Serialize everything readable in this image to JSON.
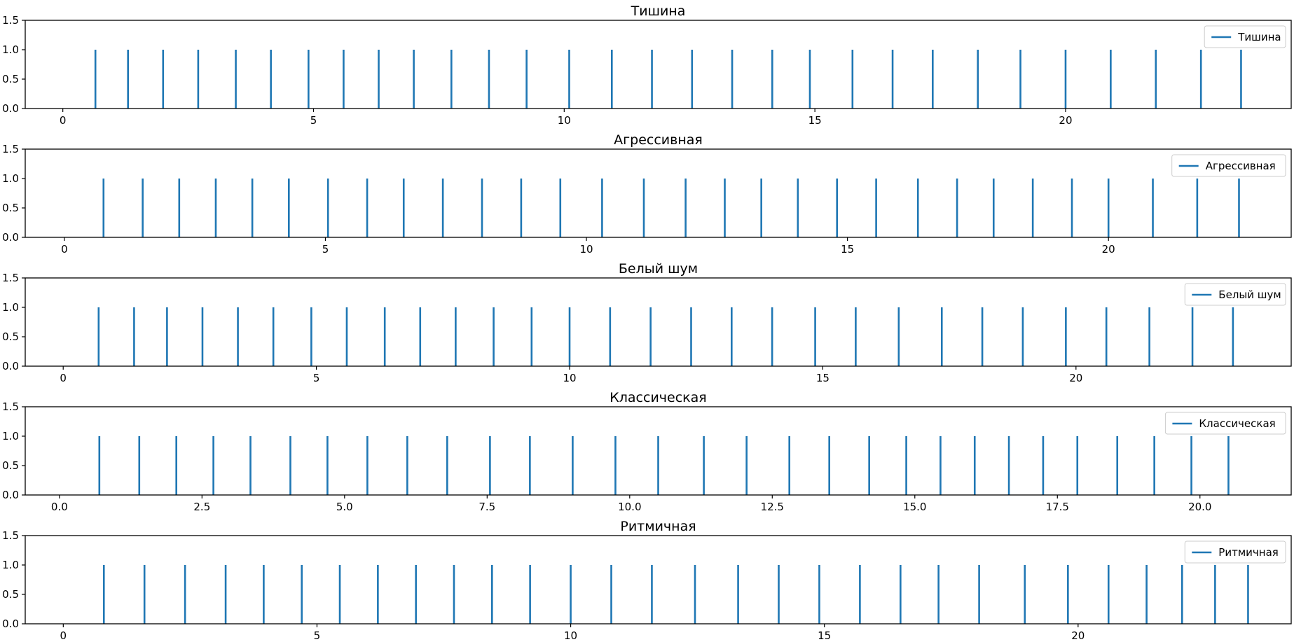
{
  "chart_data": [
    {
      "type": "bar",
      "title": "Тишина",
      "xlabel": "",
      "ylabel": "",
      "xlim": [
        -0.75,
        24.5
      ],
      "ylim": [
        0,
        1.5
      ],
      "xticks": [
        "0",
        "5",
        "10",
        "15",
        "20"
      ],
      "yticks": [
        "0.0",
        "0.5",
        "1.0",
        "1.5"
      ],
      "legend": "Тишина",
      "legend_position": "top-right",
      "series": [
        {
          "name": "Тишина",
          "value": 1,
          "x": [
            0.65,
            1.3,
            2.0,
            2.7,
            3.45,
            4.15,
            4.9,
            5.6,
            6.3,
            7.0,
            7.75,
            8.5,
            9.25,
            10.1,
            10.95,
            11.75,
            12.55,
            13.35,
            14.15,
            14.9,
            15.75,
            16.55,
            17.35,
            18.25,
            19.1,
            20.0,
            20.9,
            21.8,
            22.7,
            23.5
          ]
        }
      ]
    },
    {
      "type": "bar",
      "title": "Агрессивная",
      "xlabel": "",
      "ylabel": "",
      "xlim": [
        -0.75,
        23.5
      ],
      "ylim": [
        0,
        1.5
      ],
      "xticks": [
        "0",
        "5",
        "10",
        "15",
        "20"
      ],
      "yticks": [
        "0.0",
        "0.5",
        "1.0",
        "1.5"
      ],
      "legend": "Агрессивная",
      "legend_position": "top-right",
      "series": [
        {
          "name": "Агрессивная",
          "value": 1,
          "x": [
            0.75,
            1.5,
            2.2,
            2.9,
            3.6,
            4.3,
            5.05,
            5.8,
            6.5,
            7.25,
            8.0,
            8.75,
            9.5,
            10.3,
            11.1,
            11.9,
            12.65,
            13.35,
            14.05,
            14.8,
            15.55,
            16.35,
            17.1,
            17.8,
            18.55,
            19.3,
            20.0,
            20.85,
            21.7,
            22.5
          ]
        }
      ]
    },
    {
      "type": "bar",
      "title": "Белый шум",
      "xlabel": "",
      "ylabel": "",
      "xlim": [
        -0.75,
        24.25
      ],
      "ylim": [
        0,
        1.5
      ],
      "xticks": [
        "0",
        "5",
        "10",
        "15",
        "20"
      ],
      "yticks": [
        "0.0",
        "0.5",
        "1.0",
        "1.5"
      ],
      "legend": "Белый шум",
      "legend_position": "top-right",
      "series": [
        {
          "name": "Белый шум",
          "value": 1,
          "x": [
            0.7,
            1.4,
            2.05,
            2.75,
            3.45,
            4.15,
            4.9,
            5.6,
            6.35,
            7.05,
            7.75,
            8.5,
            9.25,
            10.0,
            10.8,
            11.6,
            12.4,
            13.2,
            14.0,
            14.85,
            15.65,
            16.5,
            17.35,
            18.15,
            18.95,
            19.8,
            20.6,
            21.45,
            22.3,
            23.1
          ]
        }
      ]
    },
    {
      "type": "bar",
      "title": "Классическая",
      "xlabel": "",
      "ylabel": "",
      "xlim": [
        -0.6,
        21.6
      ],
      "ylim": [
        0,
        1.5
      ],
      "xticks": [
        "0.0",
        "2.5",
        "5.0",
        "7.5",
        "10.0",
        "12.5",
        "15.0",
        "17.5",
        "20.0"
      ],
      "yticks": [
        "0.0",
        "0.5",
        "1.0",
        "1.5"
      ],
      "legend": "Классическая",
      "legend_position": "top-right",
      "series": [
        {
          "name": "Классическая",
          "value": 1,
          "x": [
            0.7,
            1.4,
            2.05,
            2.7,
            3.35,
            4.05,
            4.7,
            5.4,
            6.1,
            6.8,
            7.55,
            8.25,
            9.0,
            9.75,
            10.5,
            11.3,
            12.05,
            12.8,
            13.5,
            14.2,
            14.85,
            15.45,
            16.05,
            16.65,
            17.25,
            17.85,
            18.55,
            19.2,
            19.85,
            20.5
          ]
        }
      ]
    },
    {
      "type": "bar",
      "title": "Ритмичная",
      "xlabel": "",
      "ylabel": "",
      "xlim": [
        -0.75,
        24.2
      ],
      "ylim": [
        0,
        1.5
      ],
      "xticks": [
        "0",
        "5",
        "10",
        "15",
        "20"
      ],
      "yticks": [
        "0.0",
        "0.5",
        "1.0",
        "1.5"
      ],
      "legend": "Ритмичная",
      "legend_position": "top-right",
      "series": [
        {
          "name": "Ритмичная",
          "value": 1,
          "x": [
            0.8,
            1.6,
            2.4,
            3.2,
            3.95,
            4.7,
            5.45,
            6.2,
            6.95,
            7.7,
            8.45,
            9.2,
            10.0,
            10.8,
            11.6,
            12.45,
            13.3,
            14.1,
            14.9,
            15.7,
            16.5,
            17.25,
            18.05,
            18.95,
            19.8,
            20.6,
            21.35,
            22.05,
            22.7,
            23.35
          ]
        }
      ]
    }
  ],
  "colors": {
    "series": "#1f77b4",
    "axis": "#000000",
    "legend_border": "#cccccc"
  }
}
